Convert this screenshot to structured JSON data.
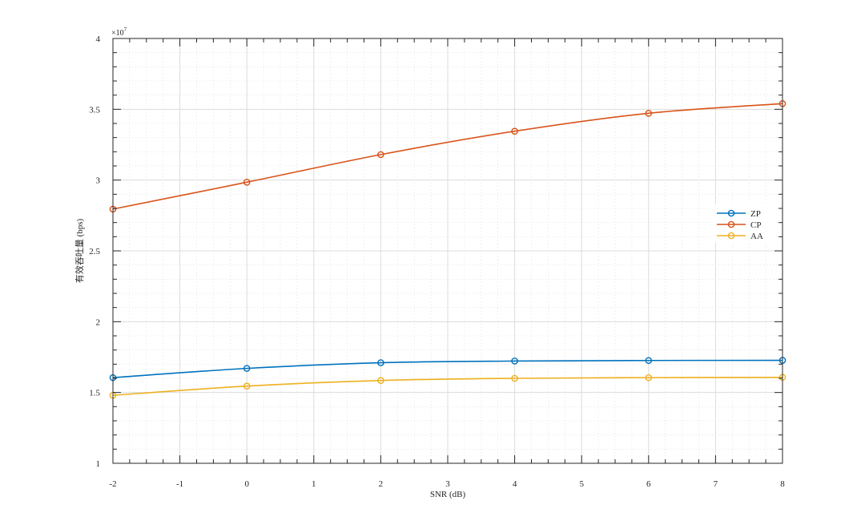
{
  "chart_data": {
    "type": "line",
    "xlabel": "SNR (dB)",
    "ylabel": "有效吞吐量 (bps)",
    "y_exponent_label": "×10",
    "y_exponent_power": "7",
    "xlim": [
      -2,
      8
    ],
    "ylim": [
      1,
      4
    ],
    "x_ticks": [
      -2,
      -1,
      0,
      1,
      2,
      3,
      4,
      5,
      6,
      7,
      8
    ],
    "x_tick_labels": [
      "-2",
      "-1",
      "0",
      "1",
      "2",
      "3",
      "4",
      "5",
      "6",
      "7",
      "8"
    ],
    "y_ticks": [
      1,
      1.5,
      2,
      2.5,
      3,
      3.5,
      4
    ],
    "y_tick_labels": [
      "1",
      "1.5",
      "2",
      "2.5",
      "3",
      "3.5",
      "4"
    ],
    "grid": true,
    "minor_grid": true,
    "legend_position": "right",
    "x": [
      -2,
      0,
      2,
      4,
      6,
      8
    ],
    "series": [
      {
        "name": "ZP",
        "color": "#0072BD",
        "values": [
          1.605,
          1.67,
          1.71,
          1.722,
          1.726,
          1.727
        ]
      },
      {
        "name": "CP",
        "color": "#D95319",
        "values": [
          2.795,
          2.985,
          3.18,
          3.345,
          3.472,
          3.54
        ]
      },
      {
        "name": "AA",
        "color": "#EDB120",
        "values": [
          1.48,
          1.545,
          1.585,
          1.6,
          1.605,
          1.607
        ]
      }
    ]
  }
}
